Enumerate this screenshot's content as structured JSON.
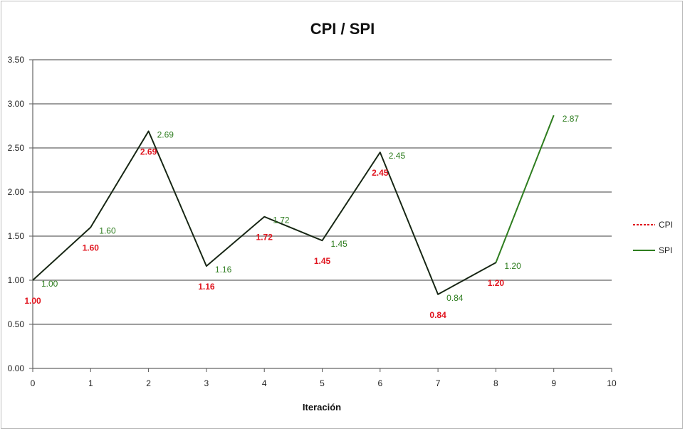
{
  "chart_data": {
    "type": "line",
    "title": "CPI / SPI",
    "xlabel": "Iteración",
    "ylabel": "",
    "xlim": [
      0,
      10
    ],
    "ylim": [
      0,
      3.5
    ],
    "x_ticks": [
      "0",
      "1",
      "2",
      "3",
      "4",
      "5",
      "6",
      "7",
      "8",
      "9",
      "10"
    ],
    "y_ticks": [
      "0.00",
      "0.50",
      "1.00",
      "1.50",
      "2.00",
      "2.50",
      "3.00",
      "3.50"
    ],
    "grid": true,
    "legend_position": "right",
    "series": [
      {
        "name": "CPI",
        "color": "#e0141e",
        "style": "dashed",
        "x": [
          0,
          1,
          2,
          3,
          4,
          5,
          6,
          7,
          8
        ],
        "values": [
          1.0,
          1.6,
          2.69,
          1.16,
          1.72,
          1.45,
          2.45,
          0.84,
          1.2
        ],
        "labels": [
          "1.00",
          "1.60",
          "2.69",
          "1.16",
          "1.72",
          "1.45",
          "2.45",
          "0.84",
          "1.20"
        ]
      },
      {
        "name": "SPI",
        "color": "#2e7d1f",
        "style": "solid",
        "x": [
          0,
          1,
          2,
          3,
          4,
          5,
          6,
          7,
          8,
          9
        ],
        "values": [
          1.0,
          1.6,
          2.69,
          1.16,
          1.72,
          1.45,
          2.45,
          0.84,
          1.2,
          2.87
        ],
        "labels": [
          "1.00",
          "1.60",
          "2.69",
          "1.16",
          "1.72",
          "1.45",
          "2.45",
          "0.84",
          "1.20",
          "2.87"
        ]
      }
    ]
  }
}
